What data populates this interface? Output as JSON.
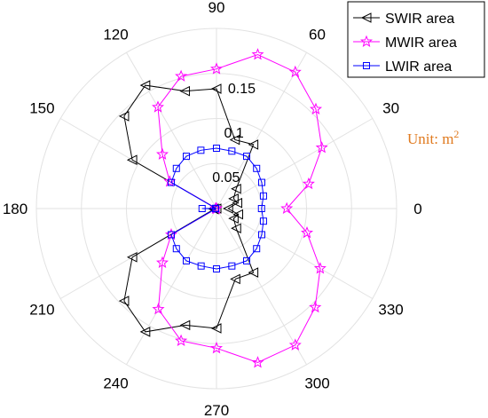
{
  "chart_data": {
    "type": "polar-line",
    "angle_ticks": [
      "0",
      "30",
      "60",
      "90",
      "120",
      "150",
      "180",
      "210",
      "240",
      "270",
      "300",
      "330"
    ],
    "radial_ticks": [
      {
        "value": 0.05,
        "label": "0.05"
      },
      {
        "value": 0.1,
        "label": "0.1"
      },
      {
        "value": 0.15,
        "label": "0.15"
      }
    ],
    "rlim": [
      0,
      0.2
    ],
    "unit": {
      "prefix": "Unit: m",
      "sup": "2"
    },
    "legend_position": "top-right",
    "grid": true,
    "angles_deg": [
      0,
      15,
      30,
      45,
      60,
      75,
      90,
      105,
      120,
      135,
      150,
      165,
      180,
      195,
      210,
      225,
      240,
      255,
      270,
      285,
      300,
      315,
      330,
      345
    ],
    "series": [
      {
        "name": "SWIR area",
        "color": "#000000",
        "marker": "triangle-left",
        "values": [
          0.013,
          0.024,
          0.022,
          0.031,
          0.082,
          0.079,
          0.133,
          0.135,
          0.158,
          0.145,
          0.108,
          0.0,
          0.003,
          0.003,
          0.108,
          0.145,
          0.158,
          0.134,
          0.133,
          0.081,
          0.082,
          0.031,
          0.022,
          0.025
        ]
      },
      {
        "name": "MWIR area",
        "color": "#ff00ff",
        "marker": "star",
        "values": [
          0.078,
          0.106,
          0.135,
          0.156,
          0.175,
          0.177,
          0.155,
          0.152,
          0.13,
          0.085,
          0.06,
          0.0,
          0.001,
          0.0,
          0.058,
          0.085,
          0.129,
          0.152,
          0.155,
          0.177,
          0.175,
          0.155,
          0.133,
          0.104
        ]
      },
      {
        "name": "LWIR area",
        "color": "#0000ff",
        "marker": "square",
        "values": [
          0.05,
          0.054,
          0.058,
          0.063,
          0.067,
          0.066,
          0.067,
          0.067,
          0.067,
          0.063,
          0.058,
          0.001,
          0.016,
          0.001,
          0.058,
          0.063,
          0.067,
          0.066,
          0.067,
          0.066,
          0.067,
          0.063,
          0.058,
          0.054
        ]
      }
    ]
  }
}
